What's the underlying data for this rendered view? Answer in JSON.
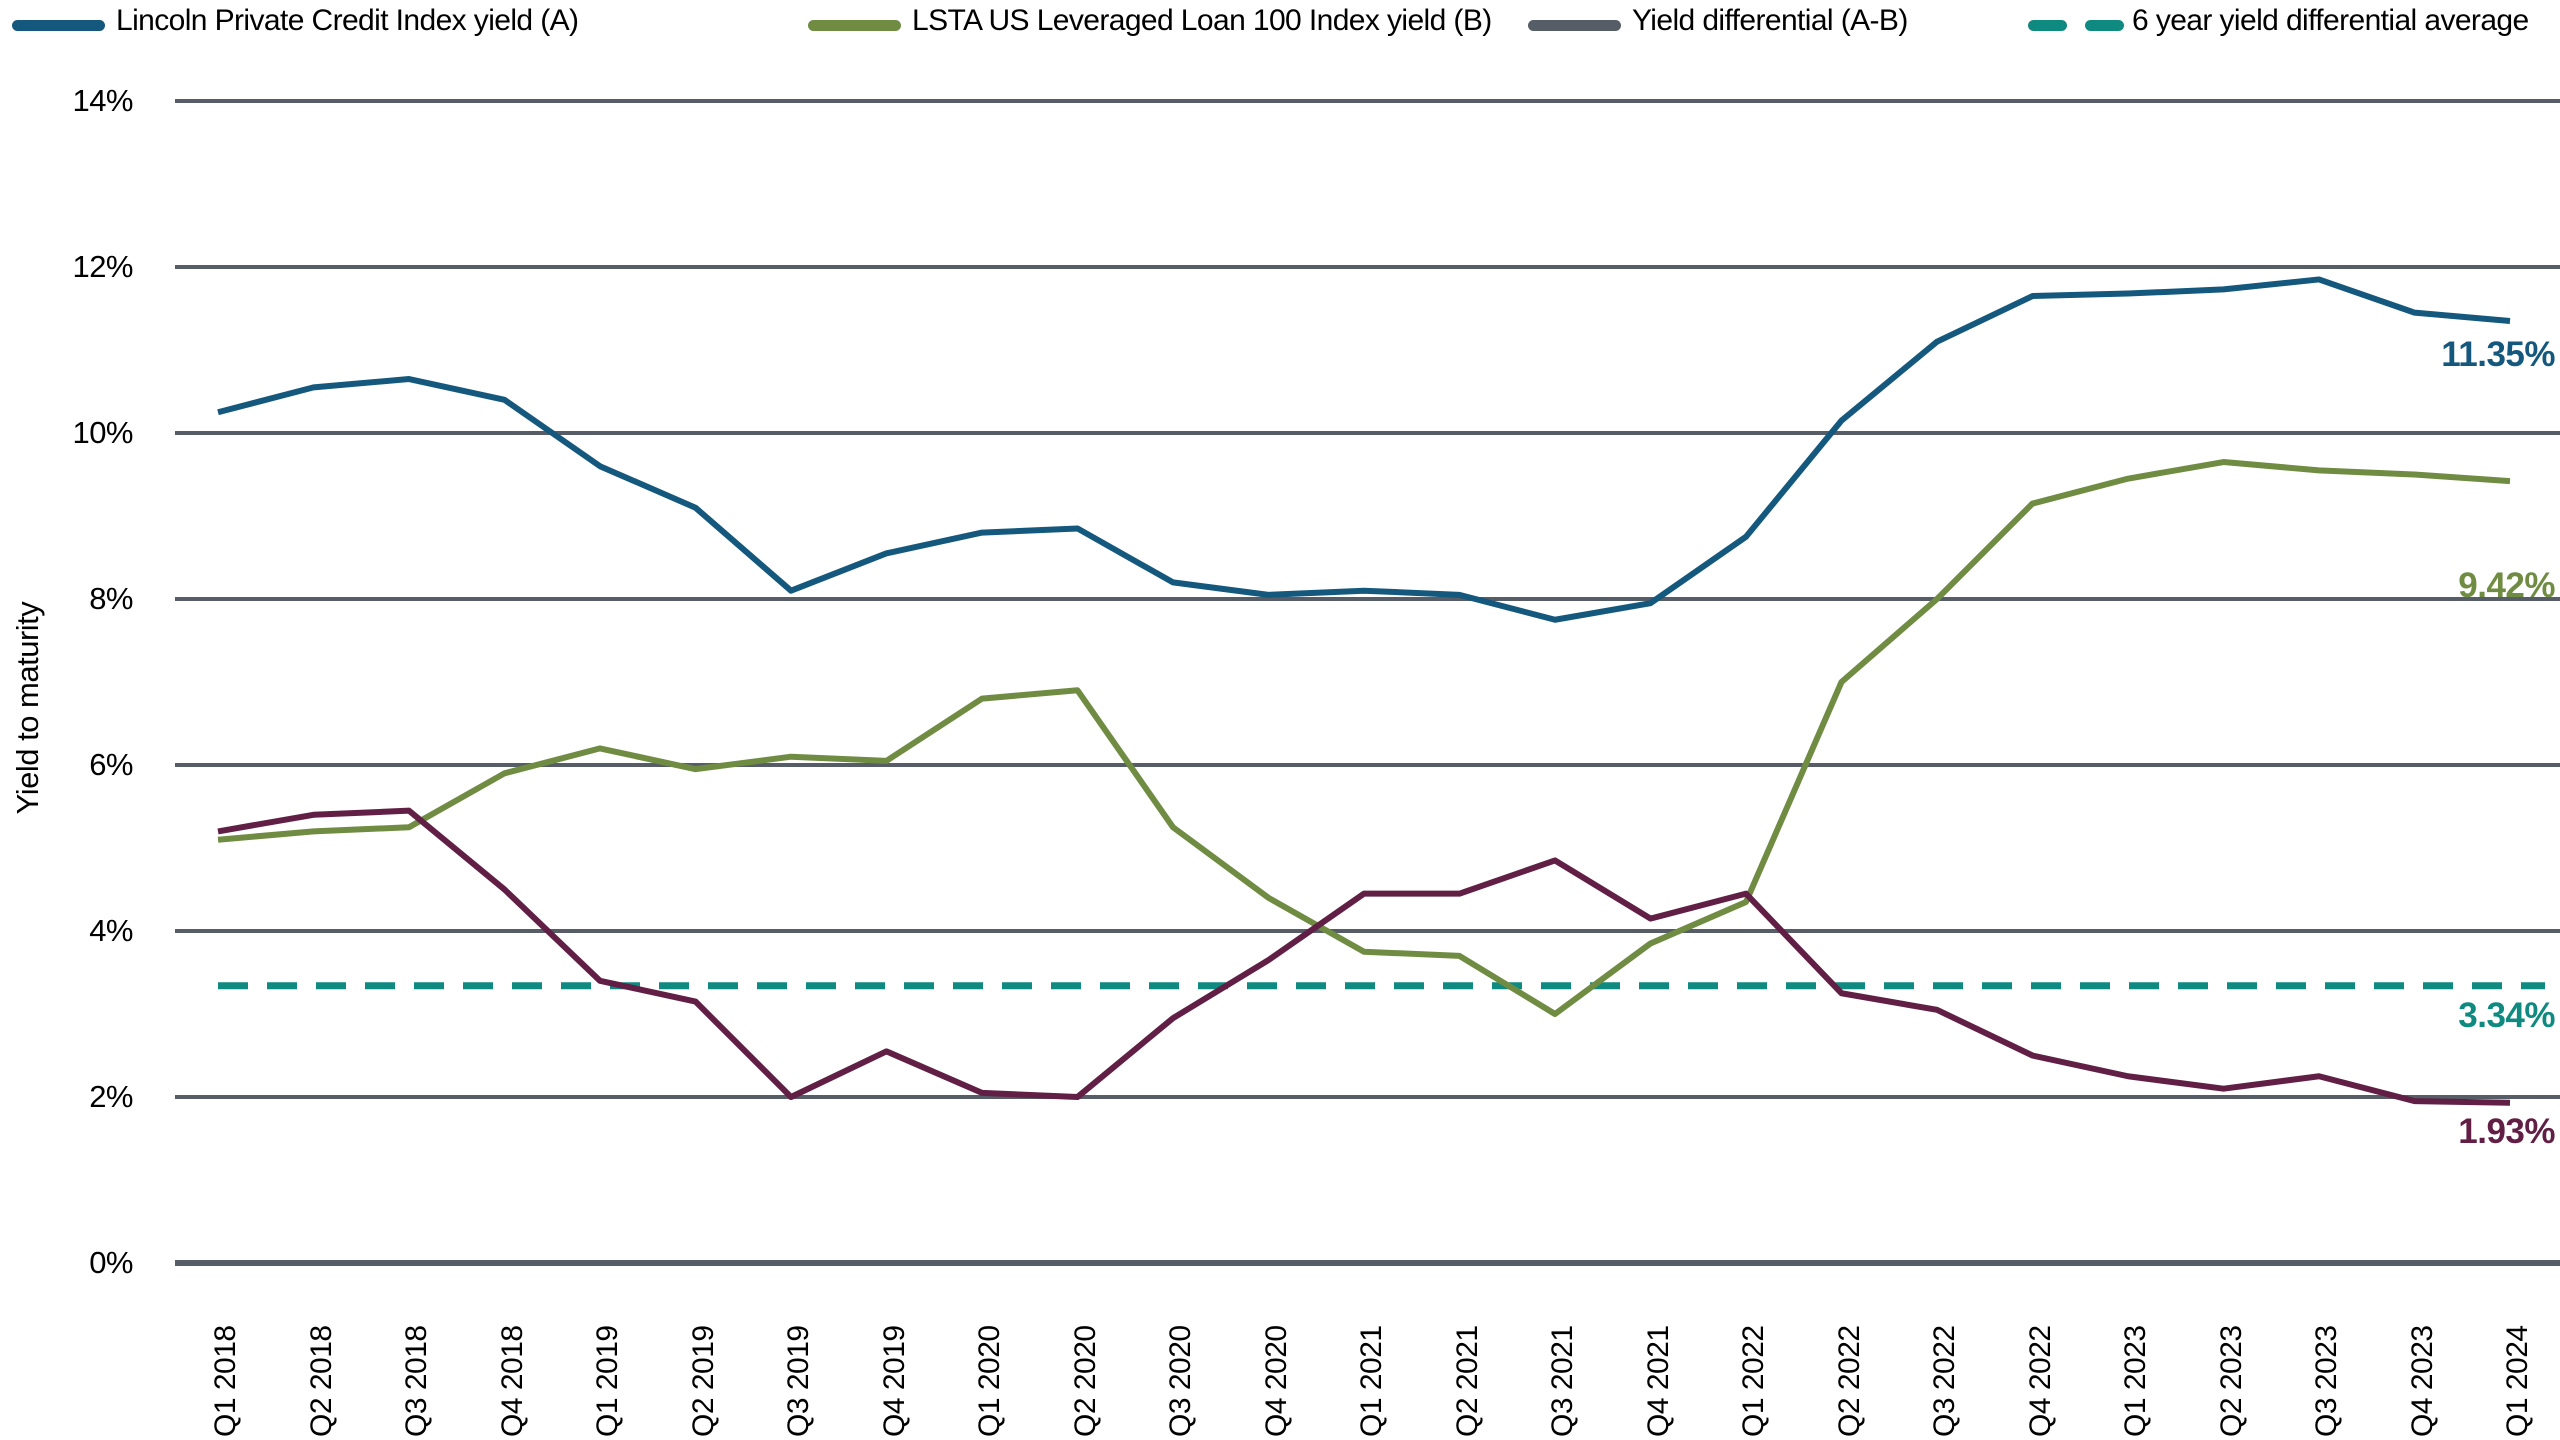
{
  "legend": [
    {
      "label": "Lincoln Private Credit Index yield (A)",
      "color": "#15587D",
      "style": "solid"
    },
    {
      "label": "LSTA US Leveraged Loan 100 Index yield (B)",
      "color": "#6F8C42",
      "style": "solid"
    },
    {
      "label": "Yield differential (A-B)",
      "color": "#555D66",
      "style": "solid"
    },
    {
      "label": "6 year yield differential average",
      "color": "#0F8A80",
      "style": "dashed"
    }
  ],
  "colors": {
    "blue": "#15587D",
    "green": "#6F8C42",
    "maroon": "#611F45",
    "teal": "#0F8A80",
    "gridline": "#565D66",
    "text": "#000000"
  },
  "chart_data": {
    "type": "line",
    "title": "",
    "xlabel": "",
    "ylabel": "Yield to maturity",
    "ylim": [
      0,
      14
    ],
    "grid": true,
    "legend_position": "top",
    "yticks": [
      0,
      2,
      4,
      6,
      8,
      10,
      12,
      14
    ],
    "ytick_labels": [
      "0%",
      "2%",
      "4%",
      "6%",
      "8%",
      "10%",
      "12%",
      "14%"
    ],
    "categories": [
      "Q1 2018",
      "Q2 2018",
      "Q3 2018",
      "Q4 2018",
      "Q1 2019",
      "Q2 2019",
      "Q3 2019",
      "Q4 2019",
      "Q1 2020",
      "Q2 2020",
      "Q3 2020",
      "Q4 2020",
      "Q1 2021",
      "Q2 2021",
      "Q3 2021",
      "Q4 2021",
      "Q1 2022",
      "Q2 2022",
      "Q3 2022",
      "Q4 2022",
      "Q1 2023",
      "Q2 2023",
      "Q3 2023",
      "Q4 2023",
      "Q1 2024"
    ],
    "series": [
      {
        "name": "Lincoln Private Credit Index yield (A)",
        "color": "#15587D",
        "style": "solid",
        "end_label": "11.35%",
        "values": [
          10.25,
          10.55,
          10.65,
          10.4,
          9.6,
          9.1,
          8.1,
          8.55,
          8.8,
          8.85,
          8.2,
          8.05,
          8.1,
          8.05,
          7.75,
          7.95,
          8.75,
          10.15,
          11.1,
          11.65,
          11.68,
          11.73,
          11.85,
          11.45,
          11.35
        ]
      },
      {
        "name": "LSTA US Leveraged Loan 100 Index yield (B)",
        "color": "#6F8C42",
        "style": "solid",
        "end_label": "9.42%",
        "values": [
          5.1,
          5.2,
          5.25,
          5.9,
          6.2,
          5.95,
          6.1,
          6.05,
          6.8,
          6.9,
          5.25,
          4.4,
          3.75,
          3.7,
          3.0,
          3.85,
          4.35,
          7.0,
          8.0,
          9.15,
          9.45,
          9.65,
          9.55,
          9.5,
          9.42
        ]
      },
      {
        "name": "Yield differential (A-B)",
        "color": "#611F45",
        "style": "solid",
        "end_label": "1.93%",
        "values": [
          5.2,
          5.4,
          5.45,
          4.5,
          3.4,
          3.15,
          2.0,
          2.55,
          2.05,
          2.0,
          2.95,
          3.65,
          4.45,
          4.45,
          4.85,
          4.15,
          4.45,
          3.25,
          3.05,
          2.5,
          2.25,
          2.1,
          2.25,
          1.95,
          1.93
        ]
      },
      {
        "name": "6 year yield differential average",
        "color": "#0F8A80",
        "style": "dashed",
        "end_label": "3.34%",
        "constant": 3.34
      }
    ]
  }
}
